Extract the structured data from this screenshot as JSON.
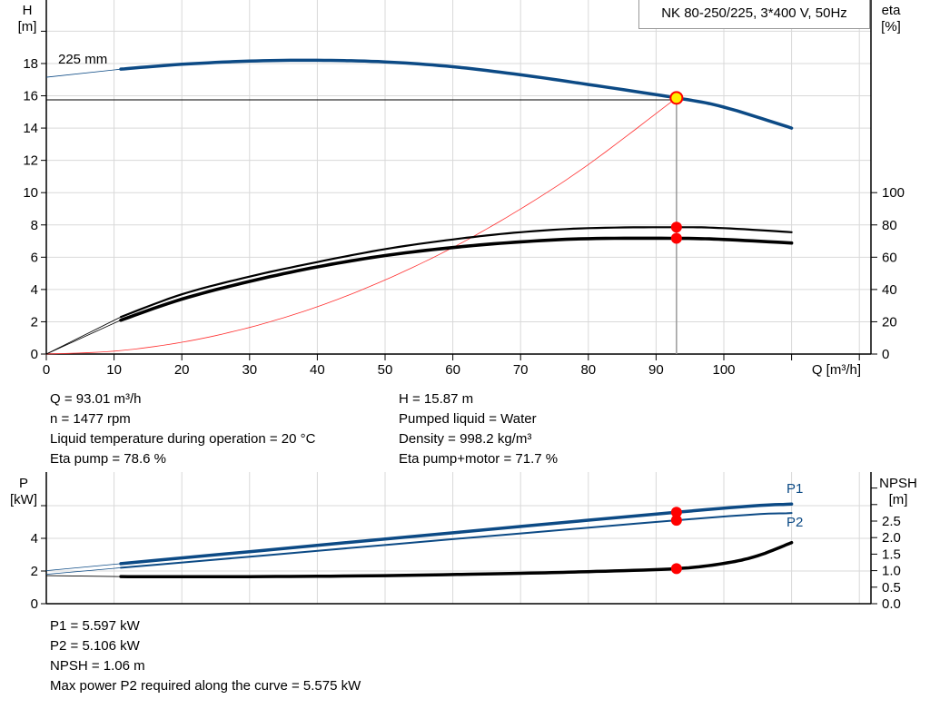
{
  "title": "NK 80-250/225, 3*400 V, 50Hz",
  "colors": {
    "pump_curve": "#0c4a85",
    "efficiency": "#000000",
    "system_curve": "#ff3030",
    "operating_point": "#ffee00",
    "marker": "#ff0000",
    "grid": "#d9d9d9"
  },
  "chart_data": [
    {
      "type": "line",
      "name_top": "head-efficiency",
      "xlabel": "Q [m³/h]",
      "ylabel_left": [
        "H",
        "[m]"
      ],
      "ylabel_right": [
        "eta",
        "[%]"
      ],
      "xlim": [
        0,
        120
      ],
      "ylim_left": [
        0,
        22
      ],
      "ylim_right": [
        0,
        220
      ],
      "x_ticks": [
        "0",
        "10",
        "20",
        "30",
        "40",
        "50",
        "60",
        "70",
        "80",
        "90",
        "100"
      ],
      "y_ticks_left": [
        "0",
        "2",
        "4",
        "6",
        "8",
        "10",
        "12",
        "14",
        "16",
        "18"
      ],
      "y_ticks_right": [
        "0",
        "20",
        "40",
        "60",
        "80",
        "100"
      ],
      "grid": true,
      "impeller_label": "225 mm",
      "series": [
        {
          "key": "head",
          "axis": "left",
          "x": [
            11,
            20,
            30,
            40,
            50,
            60,
            70,
            80,
            93.01,
            100,
            110
          ],
          "y": [
            17.65,
            17.95,
            18.15,
            18.2,
            18.1,
            17.8,
            17.3,
            16.7,
            15.87,
            15.3,
            14.0
          ],
          "extrapolated_from": [
            0,
            17.15
          ]
        },
        {
          "key": "eta_pump",
          "axis": "right",
          "x": [
            11,
            20,
            30,
            40,
            50,
            60,
            70,
            80,
            93.01,
            100,
            110
          ],
          "y": [
            23,
            37,
            48,
            57,
            65,
            71,
            75.5,
            78,
            78.6,
            78,
            75.5
          ],
          "extrapolated_from": [
            0,
            0
          ]
        },
        {
          "key": "eta_pump_motor",
          "axis": "right",
          "x": [
            11,
            20,
            30,
            40,
            50,
            60,
            70,
            80,
            93.01,
            100,
            110
          ],
          "y": [
            21,
            34,
            45,
            54,
            61,
            66,
            69.5,
            71.5,
            71.7,
            71,
            68.8
          ],
          "extrapolated_from": [
            0,
            0
          ]
        },
        {
          "key": "system",
          "axis": "left",
          "x": [
            0,
            10,
            20,
            30,
            40,
            50,
            60,
            70,
            80,
            93.01
          ],
          "y": [
            0,
            0.18,
            0.73,
            1.65,
            2.93,
            4.59,
            6.6,
            8.99,
            11.74,
            15.87
          ]
        }
      ],
      "operating_point": {
        "Q": 93.01,
        "H": 15.87,
        "eta_pump": 78.6,
        "eta_pump_motor": 71.7,
        "H_line": 15.75
      }
    },
    {
      "type": "line",
      "name_top": "power-npsh",
      "ylabel_left": [
        "P",
        "[kW]"
      ],
      "ylabel_right": [
        "NPSH",
        "[m]"
      ],
      "xlim": [
        0,
        120
      ],
      "ylim_left": [
        0,
        8
      ],
      "ylim_right": [
        0,
        4
      ],
      "y_ticks_left": [
        "0",
        "2",
        "4"
      ],
      "y_ticks_right": [
        "0.0",
        "0.5",
        "1.0",
        "1.5",
        "2.0",
        "2.5"
      ],
      "grid": true,
      "series": [
        {
          "key": "P1",
          "name": "P1",
          "axis": "left",
          "x": [
            11,
            93.01,
            110
          ],
          "y": [
            2.45,
            5.597,
            6.1
          ],
          "extrapolated_from": [
            0,
            2.02
          ]
        },
        {
          "key": "P2",
          "name": "P2",
          "axis": "left",
          "x": [
            11,
            93.01,
            110
          ],
          "y": [
            2.2,
            5.106,
            5.55
          ],
          "extrapolated_from": [
            0,
            1.8
          ]
        },
        {
          "key": "NPSH",
          "axis": "right",
          "x": [
            11,
            30,
            50,
            70,
            80,
            93.01,
            100,
            105,
            110
          ],
          "y": [
            0.82,
            0.82,
            0.85,
            0.92,
            0.97,
            1.06,
            1.22,
            1.45,
            1.85
          ],
          "extrapolated_from": [
            0,
            0.85
          ]
        }
      ]
    }
  ],
  "info_top": {
    "left": [
      "Q = 93.01 m³/h",
      "n = 1477 rpm",
      "Liquid temperature during operation = 20 °C",
      "Eta pump = 78.6 %"
    ],
    "right": [
      "H = 15.87 m",
      "Pumped liquid = Water",
      "Density = 998.2 kg/m³",
      "Eta pump+motor = 71.7 %"
    ]
  },
  "info_bottom": [
    "P1 = 5.597 kW",
    "P2 = 5.106 kW",
    "NPSH = 1.06 m",
    "Max power P2 required along the curve = 5.575 kW"
  ]
}
